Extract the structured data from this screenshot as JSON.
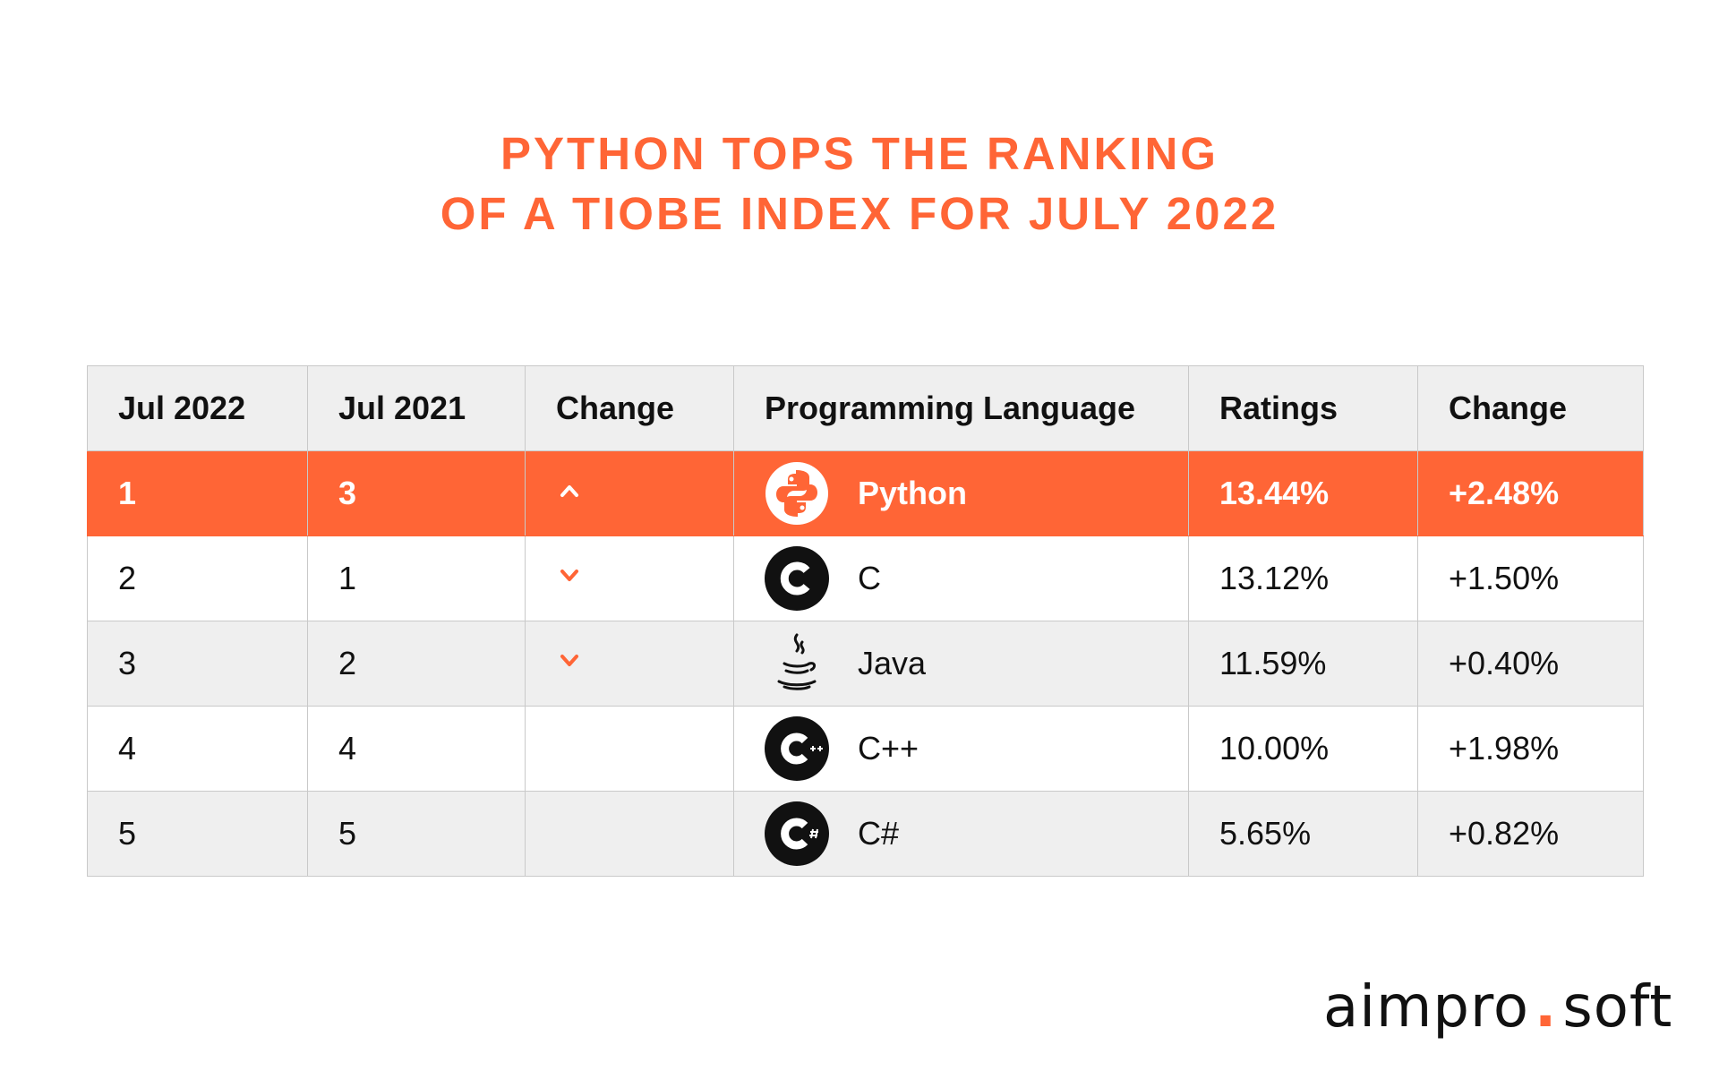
{
  "title": {
    "line1": "PYTHON TOPS THE RANKING",
    "line2": "OF A TIOBE INDEX FOR JULY 2022"
  },
  "colors": {
    "accent": "#ff6536",
    "header_bg": "#efefef",
    "border": "#c9c9c9",
    "text": "#111111"
  },
  "chart_data": {
    "type": "table",
    "title": "PYTHON TOPS THE RANKING OF A TIOBE INDEX FOR JULY 2022",
    "columns": [
      "Jul 2022",
      "Jul 2021",
      "Change",
      "Programming Language",
      "Ratings",
      "Change"
    ],
    "rows": [
      {
        "jul2022": "1",
        "jul2021": "3",
        "change_dir": "up",
        "language": "Python",
        "icon": "python-icon",
        "ratings": "13.44%",
        "change": "+2.48%",
        "highlight": true
      },
      {
        "jul2022": "2",
        "jul2021": "1",
        "change_dir": "down",
        "language": "C",
        "icon": "c-icon",
        "ratings": "13.12%",
        "change": "+1.50%",
        "highlight": false
      },
      {
        "jul2022": "3",
        "jul2021": "2",
        "change_dir": "down",
        "language": "Java",
        "icon": "java-icon",
        "ratings": "11.59%",
        "change": "+0.40%",
        "highlight": false
      },
      {
        "jul2022": "4",
        "jul2021": "4",
        "change_dir": "none",
        "language": "C++",
        "icon": "cpp-icon",
        "ratings": "10.00%",
        "change": "+1.98%",
        "highlight": false
      },
      {
        "jul2022": "5",
        "jul2021": "5",
        "change_dir": "none",
        "language": "C#",
        "icon": "csharp-icon",
        "ratings": "5.65%",
        "change": "+0.82%",
        "highlight": false
      }
    ]
  },
  "logo": {
    "left": "aimpro",
    "dot": ".",
    "right": "soft"
  }
}
